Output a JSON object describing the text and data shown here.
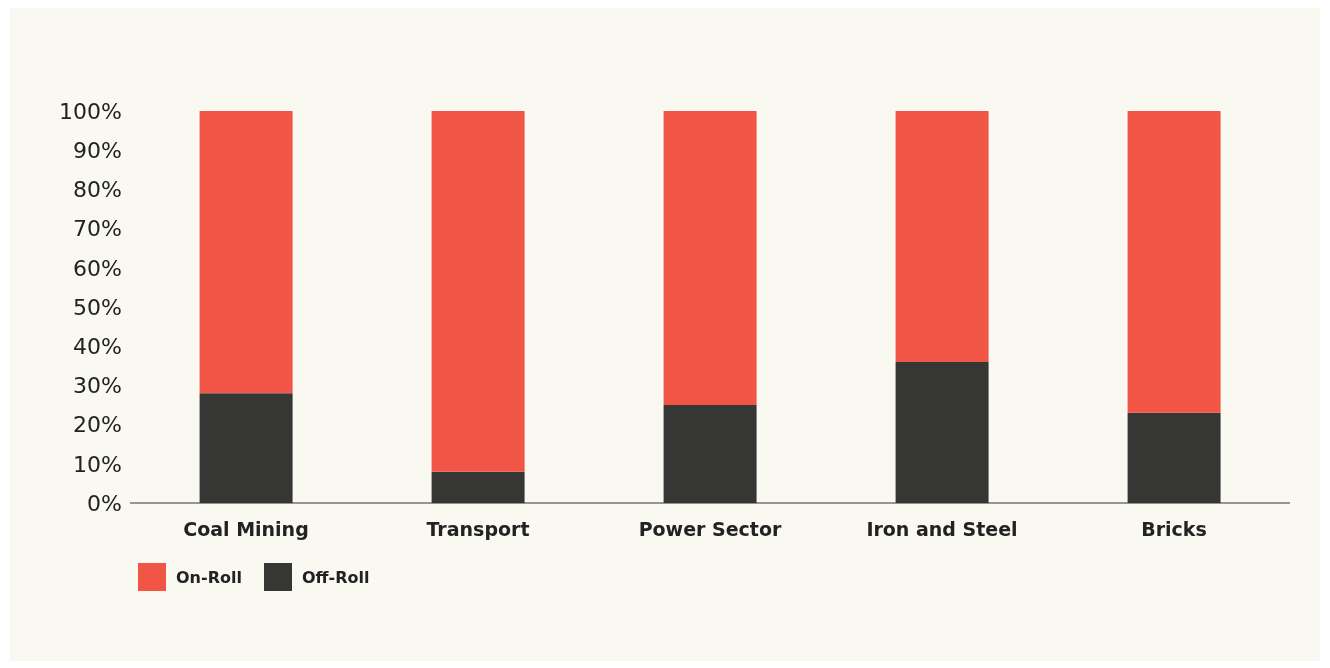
{
  "chart_data": {
    "type": "bar",
    "stacked": true,
    "categories": [
      "Coal Mining",
      "Transport",
      "Power Sector",
      "Iron and Steel",
      "Bricks"
    ],
    "series": [
      {
        "name": "Off-Roll",
        "color": "#363634",
        "values": [
          28,
          8,
          25,
          36,
          23
        ]
      },
      {
        "name": "On-Roll",
        "color": "#f05545",
        "values": [
          72,
          92,
          75,
          64,
          77
        ]
      }
    ],
    "ylim": [
      0,
      100
    ],
    "yticks": [
      {
        "value": 0,
        "label": "0%"
      },
      {
        "value": 10,
        "label": "10%"
      },
      {
        "value": 20,
        "label": "20%"
      },
      {
        "value": 30,
        "label": "30%"
      },
      {
        "value": 40,
        "label": "40%"
      },
      {
        "value": 50,
        "label": "50%"
      },
      {
        "value": 60,
        "label": "60%"
      },
      {
        "value": 70,
        "label": "70%"
      },
      {
        "value": 80,
        "label": "80%"
      },
      {
        "value": 90,
        "label": "90%"
      },
      {
        "value": 100,
        "label": "100%"
      }
    ],
    "grid": false,
    "legend": "bottom left"
  }
}
